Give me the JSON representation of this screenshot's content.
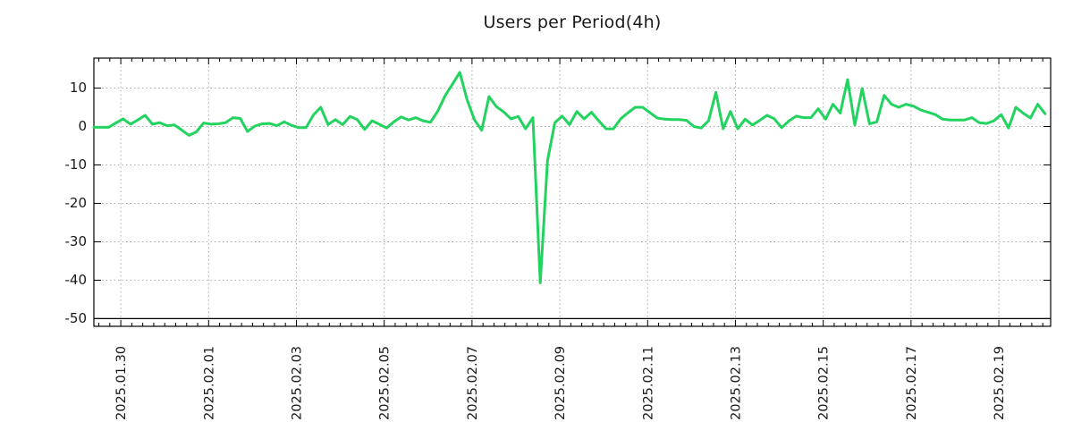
{
  "title": "Users per Period(4h)",
  "chart_data": {
    "type": "line",
    "title": "Users per Period(4h)",
    "series_name": "users-per-period",
    "legend": "none",
    "grid": true,
    "background": "#ffffff",
    "line_color": "#22d35f",
    "grid_color": "#a9a9a9",
    "frame_color": "#000000",
    "text_color": "#1a1a1a",
    "x_tick_labels": [
      "2025.01.30",
      "2025.02.01",
      "2025.02.03",
      "2025.02.05",
      "2025.02.07",
      "2025.02.09",
      "2025.02.11",
      "2025.02.13",
      "2025.02.15",
      "2025.02.17",
      "2025.02.19"
    ],
    "x_tick_days": [
      0,
      2,
      4,
      6,
      8,
      10,
      12,
      14,
      16,
      18,
      20
    ],
    "x_domain_days": [
      -0.613,
      21.18
    ],
    "x_minor_step_days": 0.25,
    "y_ticks": [
      10,
      0,
      -10,
      -20,
      -30,
      -40,
      -50
    ],
    "y_domain": [
      -52,
      17.8
    ],
    "y_solid_line_at": -50,
    "x_start_day": -0.613,
    "x_step_days": 0.1666667,
    "period": "4h",
    "values": [
      -0.2,
      -0.2,
      -0.2,
      0.9,
      2.0,
      0.6,
      1.7,
      2.9,
      0.6,
      1.0,
      0.2,
      0.4,
      -0.9,
      -2.3,
      -1.4,
      0.9,
      0.6,
      0.7,
      1.0,
      2.3,
      2.1,
      -1.3,
      0.1,
      0.7,
      0.8,
      0.2,
      1.2,
      0.3,
      -0.3,
      -0.3,
      3.0,
      5.0,
      0.5,
      1.8,
      0.5,
      2.6,
      1.8,
      -0.8,
      1.5,
      0.6,
      -0.4,
      1.2,
      2.5,
      1.7,
      2.3,
      1.5,
      1.1,
      4.0,
      8.0,
      11.0,
      14.1,
      7.0,
      1.8,
      -1.0,
      7.8,
      5.2,
      3.8,
      2.0,
      2.6,
      -0.6,
      2.3,
      -40.7,
      -8.9,
      1.0,
      2.7,
      0.5,
      3.9,
      2.0,
      3.7,
      1.5,
      -0.6,
      -0.6,
      2.0,
      3.6,
      5.0,
      5.0,
      3.6,
      2.2,
      1.9,
      1.8,
      1.8,
      1.6,
      0.0,
      -0.4,
      1.5,
      8.9,
      -0.6,
      3.9,
      -0.6,
      1.9,
      0.4,
      1.6,
      2.9,
      2.0,
      -0.3,
      1.5,
      2.7,
      2.3,
      2.3,
      4.6,
      1.9,
      5.8,
      3.5,
      12.2,
      0.4,
      9.9,
      0.7,
      1.2,
      8.1,
      5.8,
      5.0,
      5.8,
      5.3,
      4.3,
      3.7,
      3.1,
      1.9,
      1.7,
      1.7,
      1.7,
      2.3,
      1.0,
      0.8,
      1.5,
      3.1,
      -0.4,
      5.0,
      3.5,
      2.2,
      5.8,
      3.3
    ]
  }
}
